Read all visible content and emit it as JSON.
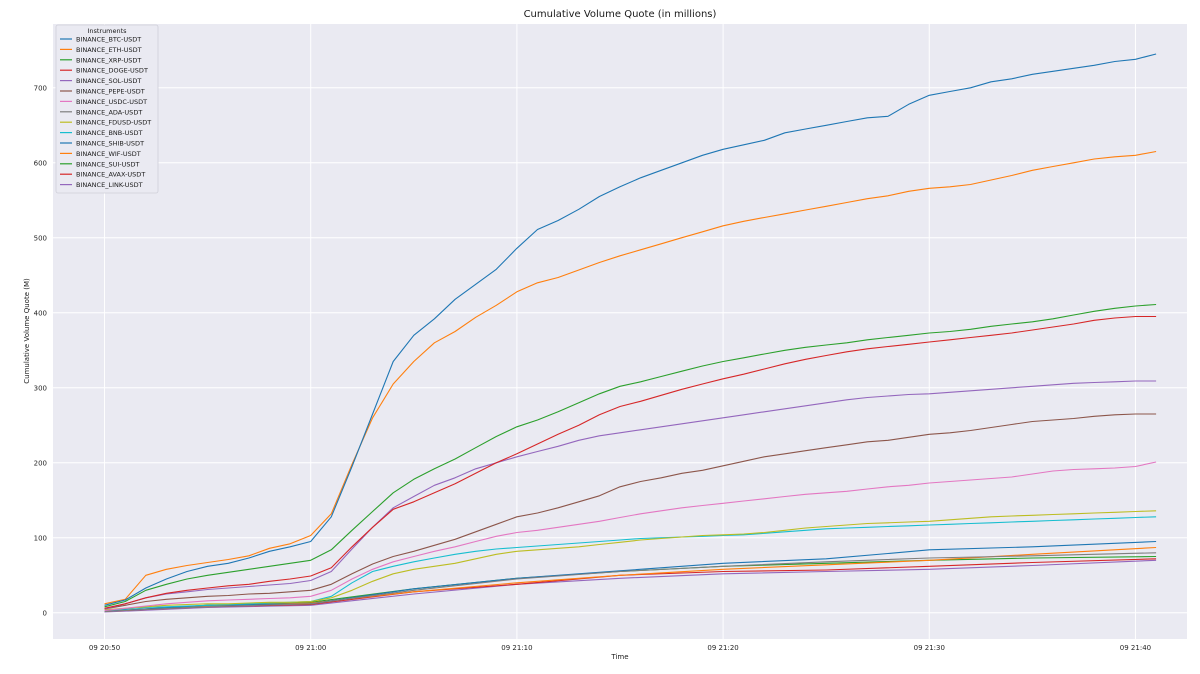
{
  "chart_data": {
    "type": "line",
    "title": "Cumulative Volume Quote (in millions)",
    "xlabel": "Time",
    "ylabel": "Cumulative Volume Quote (M)",
    "x_ticks": [
      "09 20:50",
      "09 21:00",
      "09 21:10",
      "09 21:20",
      "09 21:30",
      "09 21:40"
    ],
    "x_tick_minutes": [
      0,
      10,
      20,
      30,
      40,
      50
    ],
    "xlim": [
      -2.5,
      52.5
    ],
    "ylim": [
      -35,
      785
    ],
    "y_ticks": [
      0,
      100,
      200,
      300,
      400,
      500,
      600,
      700
    ],
    "grid": true,
    "legend": {
      "title": "Instruments",
      "placement": "top-left"
    },
    "series": [
      {
        "name": "BINANCE_BTC-USDT",
        "color": "#1f77b4",
        "x": [
          0,
          1,
          2,
          3,
          4,
          5,
          6,
          7,
          8,
          9,
          10,
          11,
          12,
          13,
          14,
          15,
          16,
          17,
          18,
          19,
          20,
          21,
          22,
          23,
          24,
          25,
          26,
          27,
          28,
          29,
          30,
          31,
          32,
          33,
          34,
          35,
          36,
          37,
          38,
          39,
          40,
          41,
          42,
          43,
          44,
          45,
          46,
          47,
          48,
          49,
          50,
          51
        ],
        "y": [
          10,
          17,
          33,
          45,
          55,
          62,
          66,
          73,
          82,
          88,
          95,
          128,
          195,
          265,
          335,
          370,
          392,
          418,
          438,
          458,
          486,
          511,
          523,
          538,
          555,
          568,
          580,
          590,
          600,
          610,
          618,
          624,
          630,
          640,
          645,
          650,
          655,
          660,
          662,
          678,
          690,
          695,
          700,
          708,
          712,
          718,
          722,
          726,
          730,
          735,
          738,
          745
        ]
      },
      {
        "name": "BINANCE_ETH-USDT",
        "color": "#ff7f0e",
        "x": [
          0,
          1,
          2,
          3,
          4,
          5,
          6,
          7,
          8,
          9,
          10,
          11,
          12,
          13,
          14,
          15,
          16,
          17,
          18,
          19,
          20,
          21,
          22,
          23,
          24,
          25,
          26,
          27,
          28,
          29,
          30,
          31,
          32,
          33,
          34,
          35,
          36,
          37,
          38,
          39,
          40,
          41,
          42,
          43,
          44,
          45,
          46,
          47,
          48,
          49,
          50,
          51
        ],
        "y": [
          12,
          18,
          50,
          58,
          63,
          67,
          71,
          76,
          86,
          92,
          103,
          132,
          198,
          260,
          305,
          335,
          360,
          375,
          394,
          410,
          428,
          440,
          447,
          457,
          467,
          476,
          484,
          492,
          500,
          508,
          516,
          522,
          527,
          532,
          537,
          542,
          547,
          552,
          556,
          562,
          566,
          568,
          571,
          577,
          583,
          590,
          595,
          600,
          605,
          608,
          610,
          615
        ]
      },
      {
        "name": "BINANCE_XRP-USDT",
        "color": "#2ca02c",
        "x": [
          0,
          1,
          2,
          3,
          4,
          5,
          6,
          7,
          8,
          9,
          10,
          11,
          12,
          13,
          14,
          15,
          16,
          17,
          18,
          19,
          20,
          21,
          22,
          23,
          24,
          25,
          26,
          27,
          28,
          29,
          30,
          31,
          32,
          33,
          34,
          35,
          36,
          37,
          38,
          39,
          40,
          41,
          42,
          43,
          44,
          45,
          46,
          47,
          48,
          49,
          50,
          51
        ],
        "y": [
          8,
          15,
          30,
          38,
          45,
          50,
          54,
          58,
          62,
          66,
          70,
          84,
          110,
          135,
          160,
          178,
          192,
          205,
          220,
          235,
          248,
          257,
          268,
          280,
          292,
          302,
          308,
          315,
          322,
          329,
          335,
          340,
          345,
          350,
          354,
          357,
          360,
          364,
          367,
          370,
          373,
          375,
          378,
          382,
          385,
          388,
          392,
          397,
          402,
          406,
          409,
          411
        ]
      },
      {
        "name": "BINANCE_DOGE-USDT",
        "color": "#d62728",
        "x": [
          0,
          1,
          2,
          3,
          4,
          5,
          6,
          7,
          8,
          9,
          10,
          11,
          12,
          13,
          14,
          15,
          16,
          17,
          18,
          19,
          20,
          21,
          22,
          23,
          24,
          25,
          26,
          27,
          28,
          29,
          30,
          31,
          32,
          33,
          34,
          35,
          36,
          37,
          38,
          39,
          40,
          41,
          42,
          43,
          44,
          45,
          46,
          47,
          48,
          49,
          50,
          51
        ],
        "y": [
          6,
          12,
          20,
          26,
          30,
          33,
          36,
          38,
          42,
          45,
          49,
          60,
          88,
          114,
          138,
          148,
          160,
          172,
          186,
          200,
          212,
          225,
          238,
          250,
          264,
          275,
          282,
          290,
          298,
          305,
          312,
          318,
          325,
          332,
          338,
          343,
          348,
          352,
          355,
          358,
          361,
          364,
          367,
          370,
          373,
          377,
          381,
          385,
          390,
          393,
          395,
          395
        ]
      },
      {
        "name": "BINANCE_SOL-USDT",
        "color": "#9467bd",
        "x": [
          0,
          1,
          2,
          3,
          4,
          5,
          6,
          7,
          8,
          9,
          10,
          11,
          12,
          13,
          14,
          15,
          16,
          17,
          18,
          19,
          20,
          21,
          22,
          23,
          24,
          25,
          26,
          27,
          28,
          29,
          30,
          31,
          32,
          33,
          34,
          35,
          36,
          37,
          38,
          39,
          40,
          41,
          42,
          43,
          44,
          45,
          46,
          47,
          48,
          49,
          50,
          51
        ],
        "y": [
          5,
          12,
          20,
          25,
          28,
          31,
          33,
          35,
          37,
          39,
          43,
          55,
          85,
          114,
          140,
          155,
          170,
          180,
          192,
          200,
          208,
          215,
          222,
          230,
          236,
          240,
          244,
          248,
          252,
          256,
          260,
          264,
          268,
          272,
          276,
          280,
          284,
          287,
          289,
          291,
          292,
          294,
          296,
          298,
          300,
          302,
          304,
          306,
          307,
          308,
          309,
          309
        ]
      },
      {
        "name": "BINANCE_PEPE-USDT",
        "color": "#8c564b",
        "x": [
          0,
          1,
          2,
          3,
          4,
          5,
          6,
          7,
          8,
          9,
          10,
          11,
          12,
          13,
          14,
          15,
          16,
          17,
          18,
          19,
          20,
          21,
          22,
          23,
          24,
          25,
          26,
          27,
          28,
          29,
          30,
          31,
          32,
          33,
          34,
          35,
          36,
          37,
          38,
          39,
          40,
          41,
          42,
          43,
          44,
          45,
          46,
          47,
          48,
          49,
          50,
          51
        ],
        "y": [
          5,
          10,
          15,
          18,
          20,
          22,
          23,
          25,
          26,
          28,
          30,
          38,
          52,
          65,
          75,
          82,
          90,
          98,
          108,
          118,
          128,
          133,
          140,
          148,
          156,
          168,
          175,
          180,
          186,
          190,
          196,
          202,
          208,
          212,
          216,
          220,
          224,
          228,
          230,
          234,
          238,
          240,
          243,
          247,
          251,
          255,
          257,
          259,
          262,
          264,
          265,
          265
        ]
      },
      {
        "name": "BINANCE_USDC-USDT",
        "color": "#e377c2",
        "x": [
          0,
          1,
          2,
          3,
          4,
          5,
          6,
          7,
          8,
          9,
          10,
          11,
          12,
          13,
          14,
          15,
          16,
          17,
          18,
          19,
          20,
          21,
          22,
          23,
          24,
          25,
          26,
          27,
          28,
          29,
          30,
          31,
          32,
          33,
          34,
          35,
          36,
          37,
          38,
          39,
          40,
          41,
          42,
          43,
          44,
          45,
          46,
          47,
          48,
          49,
          50,
          51
        ],
        "y": [
          3,
          6,
          9,
          12,
          14,
          16,
          17,
          18,
          19,
          20,
          22,
          30,
          45,
          58,
          68,
          75,
          82,
          88,
          95,
          102,
          107,
          110,
          114,
          118,
          122,
          127,
          132,
          136,
          140,
          143,
          146,
          149,
          152,
          155,
          158,
          160,
          162,
          165,
          168,
          170,
          173,
          175,
          177,
          179,
          181,
          185,
          189,
          191,
          192,
          193,
          195,
          201
        ]
      },
      {
        "name": "BINANCE_ADA-USDT",
        "color": "#7f7f7f",
        "x": [
          0,
          5,
          10,
          15,
          20,
          25,
          30,
          35,
          40,
          45,
          51
        ],
        "y": [
          2,
          8,
          12,
          30,
          45,
          55,
          62,
          68,
          73,
          76,
          80
        ]
      },
      {
        "name": "BINANCE_FDUSD-USDT",
        "color": "#bcbd22",
        "x": [
          0,
          1,
          2,
          3,
          4,
          5,
          6,
          7,
          8,
          9,
          10,
          11,
          12,
          13,
          14,
          15,
          16,
          17,
          18,
          19,
          20,
          21,
          22,
          23,
          24,
          25,
          26,
          27,
          28,
          29,
          30,
          31,
          32,
          33,
          34,
          35,
          36,
          37,
          38,
          39,
          40,
          41,
          42,
          43,
          44,
          45,
          46,
          47,
          48,
          49,
          50,
          51
        ],
        "y": [
          4,
          6,
          8,
          10,
          11,
          12,
          12,
          13,
          14,
          14,
          15,
          20,
          30,
          42,
          52,
          58,
          62,
          66,
          72,
          78,
          82,
          84,
          86,
          88,
          91,
          94,
          97,
          99,
          101,
          103,
          104,
          105,
          107,
          110,
          113,
          115,
          117,
          119,
          120,
          121,
          122,
          124,
          126,
          128,
          129,
          130,
          131,
          132,
          133,
          134,
          135,
          136
        ]
      },
      {
        "name": "BINANCE_BNB-USDT",
        "color": "#17becf",
        "x": [
          0,
          1,
          2,
          3,
          4,
          5,
          6,
          7,
          8,
          9,
          10,
          11,
          12,
          13,
          14,
          15,
          16,
          17,
          18,
          19,
          20,
          21,
          22,
          23,
          24,
          25,
          26,
          27,
          28,
          29,
          30,
          31,
          32,
          33,
          34,
          35,
          36,
          37,
          38,
          39,
          40,
          41,
          42,
          43,
          44,
          45,
          46,
          47,
          48,
          49,
          50,
          51
        ],
        "y": [
          3,
          5,
          7,
          8,
          9,
          10,
          11,
          12,
          13,
          14,
          15,
          22,
          40,
          55,
          62,
          68,
          73,
          78,
          82,
          85,
          87,
          89,
          91,
          93,
          95,
          97,
          99,
          100,
          101,
          102,
          103,
          104,
          106,
          108,
          110,
          112,
          113,
          114,
          115,
          116,
          117,
          118,
          119,
          120,
          121,
          122,
          123,
          124,
          125,
          126,
          127,
          128
        ]
      },
      {
        "name": "BINANCE_SHIB-USDT",
        "color": "#1f77b4",
        "x": [
          0,
          5,
          10,
          15,
          20,
          25,
          30,
          35,
          38,
          40,
          45,
          51
        ],
        "y": [
          2,
          10,
          12,
          32,
          46,
          56,
          66,
          72,
          79,
          84,
          88,
          95
        ]
      },
      {
        "name": "BINANCE_WIF-USDT",
        "color": "#ff7f0e",
        "x": [
          0,
          5,
          10,
          15,
          20,
          25,
          30,
          35,
          40,
          45,
          51
        ],
        "y": [
          2,
          9,
          13,
          28,
          40,
          50,
          58,
          64,
          70,
          78,
          87
        ]
      },
      {
        "name": "BINANCE_SUI-USDT",
        "color": "#2ca02c",
        "x": [
          0,
          5,
          10,
          15,
          20,
          25,
          30,
          35,
          40,
          45,
          51
        ],
        "y": [
          2,
          10,
          14,
          32,
          46,
          55,
          62,
          66,
          70,
          73,
          75
        ]
      },
      {
        "name": "BINANCE_AVAX-USDT",
        "color": "#d62728",
        "x": [
          0,
          5,
          10,
          15,
          20,
          25,
          30,
          35,
          40,
          45,
          51
        ],
        "y": [
          2,
          8,
          11,
          28,
          38,
          50,
          55,
          57,
          62,
          67,
          72
        ]
      },
      {
        "name": "BINANCE_LINK-USDT",
        "color": "#9467bd",
        "x": [
          0,
          5,
          10,
          15,
          20,
          25,
          30,
          35,
          40,
          45,
          51
        ],
        "y": [
          1,
          7,
          10,
          25,
          38,
          46,
          52,
          55,
          58,
          63,
          70
        ]
      }
    ]
  }
}
